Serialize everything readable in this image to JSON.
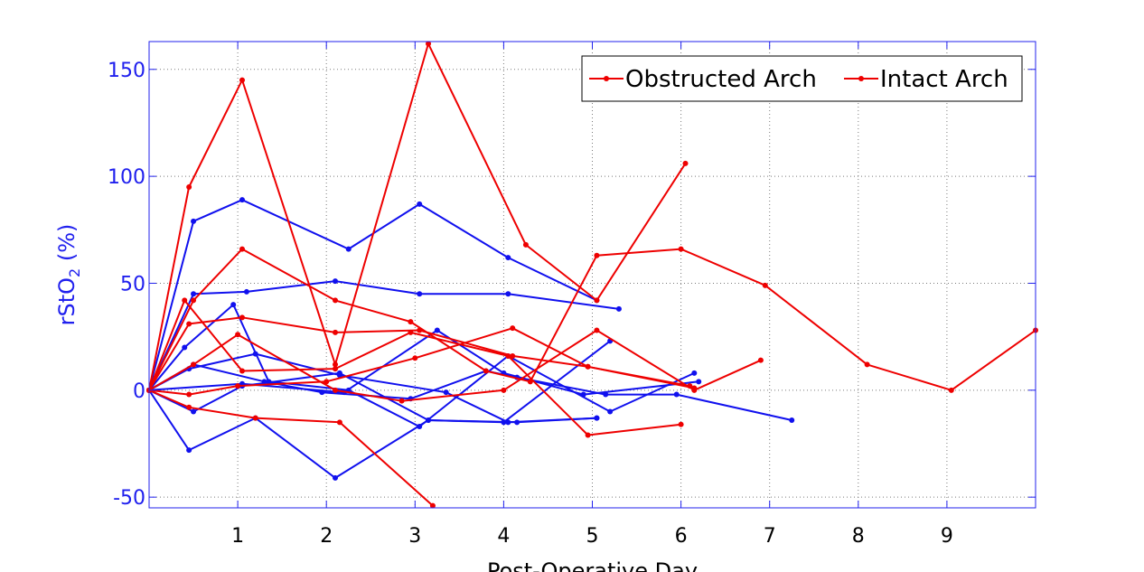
{
  "chart_data": {
    "type": "line",
    "xlabel": "Post-Operative Day",
    "ylabel_main": "rStO",
    "ylabel_sub": "2",
    "ylabel_suffix": " (%)",
    "xlim": [
      0,
      10
    ],
    "ylim": [
      -55,
      163
    ],
    "xticks": [
      1,
      2,
      3,
      4,
      5,
      6,
      7,
      8,
      9
    ],
    "yticks": [
      -50,
      0,
      50,
      100,
      150
    ],
    "grid": true,
    "legend": {
      "placement": "top-right",
      "entries": [
        {
          "label": "Obstructed Arch",
          "color": "#ee0000"
        },
        {
          "label": "Intact Arch",
          "color": "#ee0000"
        }
      ]
    },
    "colors": {
      "blue": "#1010ee",
      "red": "#ee0000",
      "axis": "#2020ee"
    },
    "series": [
      {
        "color": "blue",
        "points": [
          [
            0,
            0
          ],
          [
            0.5,
            79
          ],
          [
            1.05,
            89
          ],
          [
            2.25,
            66
          ],
          [
            3.05,
            87
          ],
          [
            4.05,
            62
          ],
          [
            5.05,
            42
          ]
        ]
      },
      {
        "color": "blue",
        "points": [
          [
            0,
            0
          ],
          [
            0.5,
            45
          ],
          [
            1.1,
            46
          ],
          [
            2.1,
            51
          ],
          [
            3.05,
            45
          ],
          [
            4.05,
            45
          ],
          [
            5.3,
            38
          ]
        ]
      },
      {
        "color": "blue",
        "points": [
          [
            0,
            0
          ],
          [
            0.4,
            20
          ],
          [
            0.95,
            40
          ],
          [
            1.35,
            4
          ],
          [
            2.25,
            0
          ],
          [
            3.05,
            -17
          ],
          [
            4.05,
            16
          ],
          [
            5.2,
            -10
          ],
          [
            6.15,
            8
          ]
        ]
      },
      {
        "color": "blue",
        "points": [
          [
            0,
            0
          ],
          [
            0.45,
            10
          ],
          [
            1.2,
            17
          ],
          [
            2.15,
            7
          ],
          [
            3.35,
            -1
          ],
          [
            4.05,
            -15
          ],
          [
            5.05,
            -13
          ]
        ]
      },
      {
        "color": "blue",
        "points": [
          [
            0,
            0
          ],
          [
            0.5,
            12
          ],
          [
            1.3,
            4
          ],
          [
            1.95,
            -1
          ],
          [
            2.95,
            -4
          ],
          [
            3.8,
            9
          ],
          [
            4.15,
            6
          ],
          [
            5.15,
            -2
          ],
          [
            5.95,
            -2
          ],
          [
            7.25,
            -14
          ]
        ]
      },
      {
        "color": "blue",
        "points": [
          [
            0,
            0
          ],
          [
            0.45,
            -28
          ],
          [
            1.2,
            -13
          ],
          [
            2.1,
            -41
          ],
          [
            3.15,
            -14
          ],
          [
            4.15,
            -15
          ],
          [
            5.05,
            -13
          ]
        ]
      },
      {
        "color": "blue",
        "points": [
          [
            0,
            0
          ],
          [
            0.5,
            -10
          ],
          [
            1.05,
            2
          ],
          [
            2.15,
            8
          ],
          [
            3.15,
            -14
          ],
          [
            4.0,
            -15
          ],
          [
            5.2,
            23
          ]
        ]
      },
      {
        "color": "blue",
        "points": [
          [
            0,
            0
          ],
          [
            1.05,
            3
          ],
          [
            2.2,
            -1
          ],
          [
            3.25,
            28
          ],
          [
            4.0,
            8
          ],
          [
            4.9,
            -2
          ],
          [
            6.2,
            4
          ]
        ]
      },
      {
        "color": "red",
        "points": [
          [
            0,
            0
          ],
          [
            0.45,
            95
          ],
          [
            1.05,
            145
          ],
          [
            2.1,
            12
          ],
          [
            3.15,
            162
          ],
          [
            4.25,
            68
          ],
          [
            5.05,
            42
          ],
          [
            6.05,
            106
          ]
        ]
      },
      {
        "color": "red",
        "points": [
          [
            0,
            0
          ],
          [
            0.5,
            42
          ],
          [
            1.05,
            66
          ],
          [
            2.1,
            42
          ],
          [
            2.95,
            32
          ],
          [
            3.8,
            9
          ],
          [
            4.3,
            4
          ],
          [
            5.05,
            63
          ],
          [
            6.0,
            66
          ],
          [
            6.95,
            49
          ],
          [
            8.1,
            12
          ],
          [
            9.05,
            0
          ],
          [
            10.0,
            28
          ]
        ]
      },
      {
        "color": "red",
        "points": [
          [
            0,
            0
          ],
          [
            0.45,
            31
          ],
          [
            1.05,
            34
          ],
          [
            2.1,
            27
          ],
          [
            3.05,
            28
          ],
          [
            4.1,
            16
          ],
          [
            4.95,
            11
          ],
          [
            6.1,
            2
          ]
        ]
      },
      {
        "color": "red",
        "points": [
          [
            0,
            0
          ],
          [
            0.4,
            42
          ],
          [
            1.05,
            9
          ],
          [
            2.1,
            10
          ],
          [
            2.95,
            27
          ],
          [
            4.05,
            16
          ],
          [
            4.95,
            -21
          ],
          [
            6.0,
            -16
          ]
        ]
      },
      {
        "color": "red",
        "points": [
          [
            0,
            0
          ],
          [
            0.5,
            12
          ],
          [
            1.0,
            26
          ],
          [
            2.1,
            0
          ],
          [
            2.85,
            -5
          ],
          [
            4.0,
            0
          ],
          [
            5.05,
            28
          ],
          [
            6.15,
            0
          ],
          [
            6.9,
            14
          ]
        ]
      },
      {
        "color": "red",
        "points": [
          [
            0,
            0
          ],
          [
            0.45,
            -8
          ],
          [
            1.2,
            -13
          ],
          [
            2.15,
            -15
          ],
          [
            3.2,
            -54
          ]
        ]
      },
      {
        "color": "red",
        "points": [
          [
            0,
            0
          ],
          [
            0.45,
            -2
          ],
          [
            1.0,
            2
          ],
          [
            2.0,
            4
          ],
          [
            3.0,
            15
          ],
          [
            4.1,
            29
          ],
          [
            4.95,
            11
          ],
          [
            6.15,
            1
          ]
        ]
      }
    ]
  }
}
